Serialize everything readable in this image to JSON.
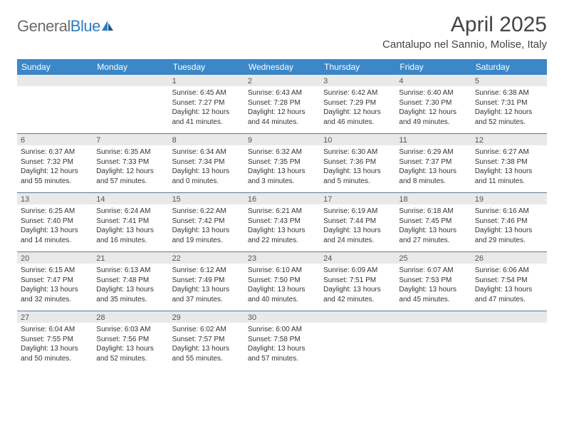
{
  "brand": {
    "name_gray": "General",
    "name_blue": "Blue"
  },
  "title": "April 2025",
  "location": "Cantalupo nel Sannio, Molise, Italy",
  "colors": {
    "header_bg": "#3b87c8",
    "header_text": "#ffffff",
    "daynum_bg": "#e9e9e9",
    "week_border": "#5a7a9a",
    "logo_gray": "#6b6b6b",
    "logo_blue": "#2f7bbf"
  },
  "weekdays": [
    "Sunday",
    "Monday",
    "Tuesday",
    "Wednesday",
    "Thursday",
    "Friday",
    "Saturday"
  ],
  "layout": {
    "columns": 7,
    "rows": 5,
    "first_day_column_index": 2
  },
  "weeks": [
    [
      {
        "blank": true
      },
      {
        "blank": true
      },
      {
        "num": "1",
        "sunrise": "Sunrise: 6:45 AM",
        "sunset": "Sunset: 7:27 PM",
        "daylight": "Daylight: 12 hours and 41 minutes."
      },
      {
        "num": "2",
        "sunrise": "Sunrise: 6:43 AM",
        "sunset": "Sunset: 7:28 PM",
        "daylight": "Daylight: 12 hours and 44 minutes."
      },
      {
        "num": "3",
        "sunrise": "Sunrise: 6:42 AM",
        "sunset": "Sunset: 7:29 PM",
        "daylight": "Daylight: 12 hours and 46 minutes."
      },
      {
        "num": "4",
        "sunrise": "Sunrise: 6:40 AM",
        "sunset": "Sunset: 7:30 PM",
        "daylight": "Daylight: 12 hours and 49 minutes."
      },
      {
        "num": "5",
        "sunrise": "Sunrise: 6:38 AM",
        "sunset": "Sunset: 7:31 PM",
        "daylight": "Daylight: 12 hours and 52 minutes."
      }
    ],
    [
      {
        "num": "6",
        "sunrise": "Sunrise: 6:37 AM",
        "sunset": "Sunset: 7:32 PM",
        "daylight": "Daylight: 12 hours and 55 minutes."
      },
      {
        "num": "7",
        "sunrise": "Sunrise: 6:35 AM",
        "sunset": "Sunset: 7:33 PM",
        "daylight": "Daylight: 12 hours and 57 minutes."
      },
      {
        "num": "8",
        "sunrise": "Sunrise: 6:34 AM",
        "sunset": "Sunset: 7:34 PM",
        "daylight": "Daylight: 13 hours and 0 minutes."
      },
      {
        "num": "9",
        "sunrise": "Sunrise: 6:32 AM",
        "sunset": "Sunset: 7:35 PM",
        "daylight": "Daylight: 13 hours and 3 minutes."
      },
      {
        "num": "10",
        "sunrise": "Sunrise: 6:30 AM",
        "sunset": "Sunset: 7:36 PM",
        "daylight": "Daylight: 13 hours and 5 minutes."
      },
      {
        "num": "11",
        "sunrise": "Sunrise: 6:29 AM",
        "sunset": "Sunset: 7:37 PM",
        "daylight": "Daylight: 13 hours and 8 minutes."
      },
      {
        "num": "12",
        "sunrise": "Sunrise: 6:27 AM",
        "sunset": "Sunset: 7:38 PM",
        "daylight": "Daylight: 13 hours and 11 minutes."
      }
    ],
    [
      {
        "num": "13",
        "sunrise": "Sunrise: 6:25 AM",
        "sunset": "Sunset: 7:40 PM",
        "daylight": "Daylight: 13 hours and 14 minutes."
      },
      {
        "num": "14",
        "sunrise": "Sunrise: 6:24 AM",
        "sunset": "Sunset: 7:41 PM",
        "daylight": "Daylight: 13 hours and 16 minutes."
      },
      {
        "num": "15",
        "sunrise": "Sunrise: 6:22 AM",
        "sunset": "Sunset: 7:42 PM",
        "daylight": "Daylight: 13 hours and 19 minutes."
      },
      {
        "num": "16",
        "sunrise": "Sunrise: 6:21 AM",
        "sunset": "Sunset: 7:43 PM",
        "daylight": "Daylight: 13 hours and 22 minutes."
      },
      {
        "num": "17",
        "sunrise": "Sunrise: 6:19 AM",
        "sunset": "Sunset: 7:44 PM",
        "daylight": "Daylight: 13 hours and 24 minutes."
      },
      {
        "num": "18",
        "sunrise": "Sunrise: 6:18 AM",
        "sunset": "Sunset: 7:45 PM",
        "daylight": "Daylight: 13 hours and 27 minutes."
      },
      {
        "num": "19",
        "sunrise": "Sunrise: 6:16 AM",
        "sunset": "Sunset: 7:46 PM",
        "daylight": "Daylight: 13 hours and 29 minutes."
      }
    ],
    [
      {
        "num": "20",
        "sunrise": "Sunrise: 6:15 AM",
        "sunset": "Sunset: 7:47 PM",
        "daylight": "Daylight: 13 hours and 32 minutes."
      },
      {
        "num": "21",
        "sunrise": "Sunrise: 6:13 AM",
        "sunset": "Sunset: 7:48 PM",
        "daylight": "Daylight: 13 hours and 35 minutes."
      },
      {
        "num": "22",
        "sunrise": "Sunrise: 6:12 AM",
        "sunset": "Sunset: 7:49 PM",
        "daylight": "Daylight: 13 hours and 37 minutes."
      },
      {
        "num": "23",
        "sunrise": "Sunrise: 6:10 AM",
        "sunset": "Sunset: 7:50 PM",
        "daylight": "Daylight: 13 hours and 40 minutes."
      },
      {
        "num": "24",
        "sunrise": "Sunrise: 6:09 AM",
        "sunset": "Sunset: 7:51 PM",
        "daylight": "Daylight: 13 hours and 42 minutes."
      },
      {
        "num": "25",
        "sunrise": "Sunrise: 6:07 AM",
        "sunset": "Sunset: 7:53 PM",
        "daylight": "Daylight: 13 hours and 45 minutes."
      },
      {
        "num": "26",
        "sunrise": "Sunrise: 6:06 AM",
        "sunset": "Sunset: 7:54 PM",
        "daylight": "Daylight: 13 hours and 47 minutes."
      }
    ],
    [
      {
        "num": "27",
        "sunrise": "Sunrise: 6:04 AM",
        "sunset": "Sunset: 7:55 PM",
        "daylight": "Daylight: 13 hours and 50 minutes."
      },
      {
        "num": "28",
        "sunrise": "Sunrise: 6:03 AM",
        "sunset": "Sunset: 7:56 PM",
        "daylight": "Daylight: 13 hours and 52 minutes."
      },
      {
        "num": "29",
        "sunrise": "Sunrise: 6:02 AM",
        "sunset": "Sunset: 7:57 PM",
        "daylight": "Daylight: 13 hours and 55 minutes."
      },
      {
        "num": "30",
        "sunrise": "Sunrise: 6:00 AM",
        "sunset": "Sunset: 7:58 PM",
        "daylight": "Daylight: 13 hours and 57 minutes."
      },
      {
        "blank": true
      },
      {
        "blank": true
      },
      {
        "blank": true
      }
    ]
  ]
}
